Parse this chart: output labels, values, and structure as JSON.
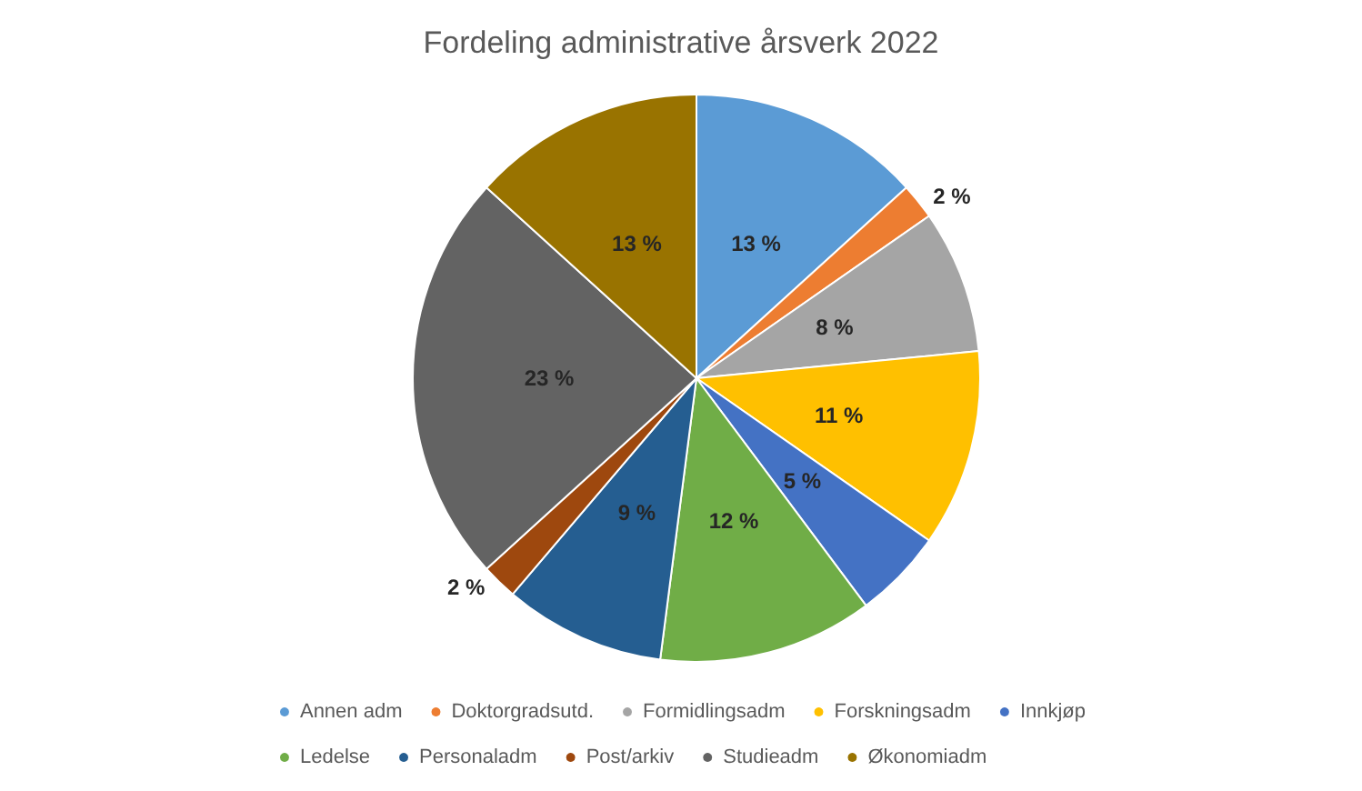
{
  "chart_data": {
    "type": "pie",
    "title": "Fordeling administrative årsverk 2022",
    "categories": [
      "Annen adm",
      "Doktorgradsutd.",
      "Formidlingsadm",
      "Forskningsadm",
      "Innkjøp",
      "Ledelse",
      "Personaladm",
      "Post/arkiv",
      "Studieadm",
      "Økonomiadm"
    ],
    "values": [
      13,
      2,
      8,
      11,
      5,
      12,
      9,
      2,
      23,
      13
    ],
    "value_labels": [
      "13 %",
      "2 %",
      "8 %",
      "11 %",
      "5 %",
      "12 %",
      "9 %",
      "2 %",
      "23 %",
      "13 %"
    ],
    "colors": [
      "#5b9bd5",
      "#ed7d31",
      "#a5a5a5",
      "#ffc000",
      "#4472c4",
      "#70ad47",
      "#255e91",
      "#9e480e",
      "#636363",
      "#997300"
    ],
    "legend": "bottom"
  }
}
